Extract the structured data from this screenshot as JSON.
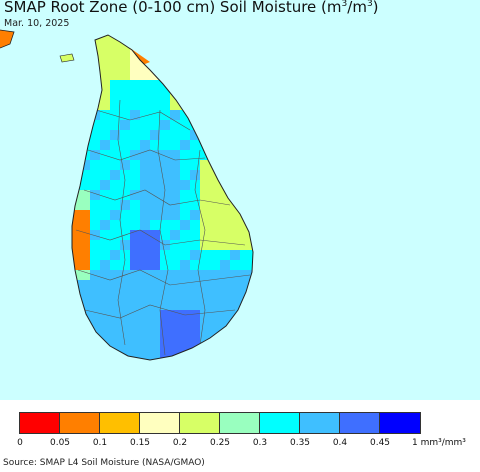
{
  "title": "SMAP Root Zone (0-100 cm) Soil Moisture (m",
  "title_unit_sup": "3",
  "title_mid": "/m",
  "title_unit_sup2": "3",
  "title_close": ")",
  "date": "Mar. 10, 2025",
  "source": "Source: SMAP L4 Soil Moisture (NASA/GMAO)",
  "colors": {
    "ocean": "#ccffff",
    "border": "#555555",
    "coast": "#222222"
  },
  "legend": {
    "colors": [
      "#ff0000",
      "#ff7f00",
      "#ffbf00",
      "#ffffbf",
      "#d7ff66",
      "#99ffbf",
      "#00ffff",
      "#3fbfff",
      "#3f6fff",
      "#0000ff"
    ],
    "ticks": [
      "0",
      "0.05",
      "0.1",
      "0.15",
      "0.2",
      "0.25",
      "0.3",
      "0.35",
      "0.4",
      "0.45",
      "1 mm³/mm³"
    ]
  }
}
